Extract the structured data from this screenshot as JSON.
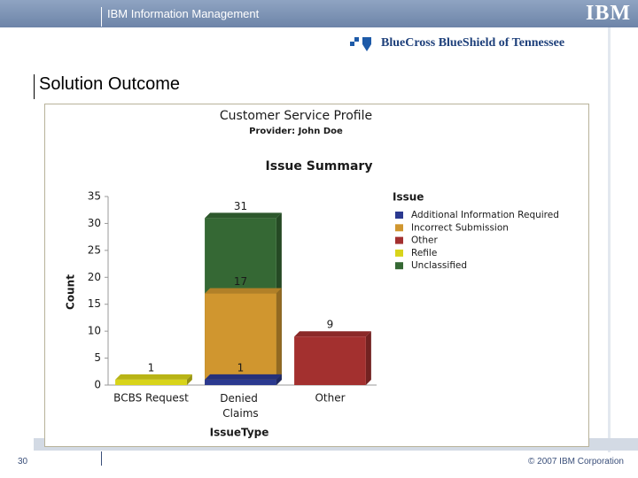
{
  "slide": {
    "header": "IBM Information Management",
    "logo": "IBM",
    "company": "BlueCross BlueShield of Tennessee",
    "title": "Solution Outcome",
    "page_number": "30",
    "copyright": "© 2007 IBM Corporation"
  },
  "chart_data": {
    "type": "bar",
    "title": "Customer Service Profile",
    "subtitle": "Provider: John Doe",
    "chart_title": "Issue Summary",
    "y_label": "Count",
    "x_label": "IssueType",
    "legend_title": "Issue",
    "categories": [
      "BCBS Request",
      "Denied Claims",
      "Other"
    ],
    "series": [
      {
        "name": "Additional Information Required",
        "color": "#2b3990",
        "values": [
          null,
          1,
          null
        ]
      },
      {
        "name": "Incorrect Submission",
        "color": "#d0962f",
        "values": [
          null,
          17,
          null
        ]
      },
      {
        "name": "Other",
        "color": "#a3302f",
        "values": [
          null,
          null,
          9
        ]
      },
      {
        "name": "Refile",
        "color": "#d8d41a",
        "values": [
          1,
          null,
          null
        ]
      },
      {
        "name": "Unclassified",
        "color": "#356834",
        "values": [
          null,
          31,
          null
        ]
      }
    ],
    "ylim": [
      0,
      35
    ],
    "yticks": [
      0,
      5,
      10,
      15,
      20,
      25,
      30,
      35
    ],
    "grid": false
  }
}
